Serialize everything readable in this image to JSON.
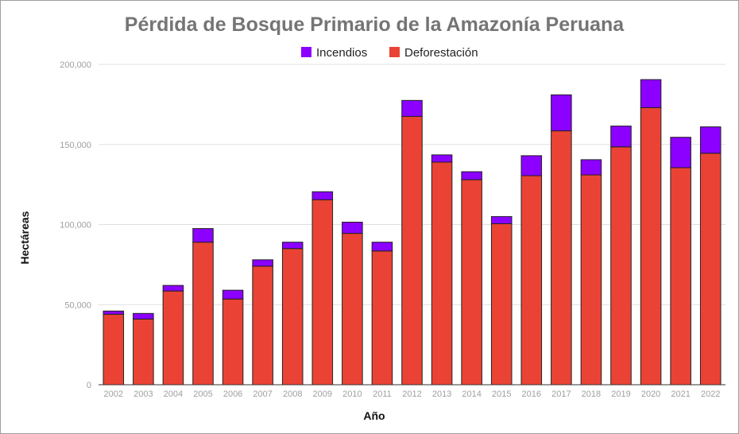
{
  "chart_data": {
    "type": "bar",
    "stacked": true,
    "title": "Pérdida de Bosque Primario de la Amazonía Peruana",
    "xlabel": "Año",
    "ylabel": "Hectáreas",
    "ylim": [
      0,
      200000
    ],
    "yticks": [
      0,
      50000,
      100000,
      150000,
      200000
    ],
    "ytick_labels": [
      "0",
      "50,000",
      "100,000",
      "150,000",
      "200,000"
    ],
    "grid": true,
    "legend_position": "top",
    "categories": [
      "2002",
      "2003",
      "2004",
      "2005",
      "2006",
      "2007",
      "2008",
      "2009",
      "2010",
      "2011",
      "2012",
      "2013",
      "2014",
      "2015",
      "2016",
      "2017",
      "2018",
      "2019",
      "2020",
      "2021",
      "2022"
    ],
    "series": [
      {
        "name": "Deforestación",
        "color": "#ea4335",
        "values": [
          44000,
          41000,
          58500,
          89000,
          53500,
          74000,
          85000,
          115500,
          94500,
          83500,
          167500,
          139000,
          128000,
          100500,
          130500,
          158500,
          131000,
          148500,
          173000,
          135500,
          144500
        ]
      },
      {
        "name": "Incendios",
        "color": "#8b00ff",
        "values": [
          2000,
          3500,
          3500,
          8500,
          5500,
          4000,
          4000,
          5000,
          7000,
          5500,
          10000,
          4500,
          5000,
          4500,
          12500,
          22500,
          9500,
          13000,
          17500,
          19000,
          16500
        ]
      }
    ],
    "legend": [
      {
        "name": "Incendios",
        "color": "#8b00ff"
      },
      {
        "name": "Deforestación",
        "color": "#ea4335"
      }
    ]
  }
}
